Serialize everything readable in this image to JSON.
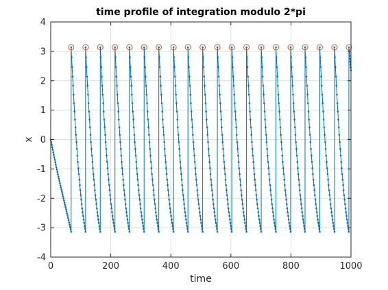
{
  "chart_data": {
    "type": "line",
    "title": "time profile of integration modulo 2*pi",
    "xlabel": "time",
    "ylabel": "x",
    "xlim": [
      0,
      1000
    ],
    "ylim": [
      -4,
      4
    ],
    "xticks": [
      0,
      200,
      400,
      600,
      800,
      1000
    ],
    "yticks": [
      -4,
      -3,
      -2,
      -1,
      0,
      1,
      2,
      3,
      4
    ],
    "xtick_labels": [
      "0",
      "200",
      "400",
      "600",
      "800",
      "1000"
    ],
    "ytick_labels": [
      "-4",
      "-3",
      "-2",
      "-1",
      "0",
      "1",
      "2",
      "3",
      "4"
    ],
    "grid": true,
    "colors": {
      "series": "#0072bd",
      "markers": "#d95319",
      "axes": "#262626",
      "grid": "#dfdfdf"
    },
    "series": [
      {
        "style": "line with dot markers",
        "initial_segment": {
          "x": [
            0,
            68
          ],
          "y": [
            0,
            -3.14
          ]
        },
        "wrap_times": [
          68,
          116,
          165,
          214,
          262,
          311,
          360,
          409,
          457,
          506,
          555,
          603,
          652,
          701,
          750,
          799,
          847,
          896,
          945,
          993
        ],
        "wrap_from": -3.14,
        "wrap_to": 3.14,
        "decay_shape": "concave, falling from 3.14 to -3.14 between wraps",
        "end": {
          "x": 1000,
          "y": 2.35
        }
      },
      {
        "style": "open circle markers",
        "x": [
          68,
          116,
          165,
          214,
          262,
          311,
          360,
          409,
          457,
          506,
          555,
          603,
          652,
          701,
          750,
          799,
          847,
          896,
          945,
          993
        ],
        "y": [
          3.14,
          3.14,
          3.14,
          3.14,
          3.14,
          3.14,
          3.14,
          3.14,
          3.14,
          3.14,
          3.14,
          3.14,
          3.14,
          3.14,
          3.14,
          3.14,
          3.14,
          3.14,
          3.14,
          3.14
        ]
      }
    ]
  }
}
